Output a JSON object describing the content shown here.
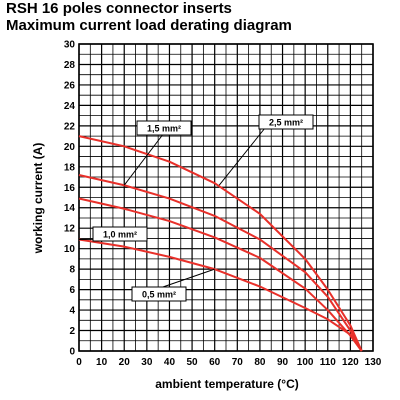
{
  "title": "RSH 16 poles connector inserts",
  "subtitle": "Maximum current load derating diagram",
  "chart_data": {
    "type": "line",
    "xlabel": "ambient temperature (°C)",
    "ylabel": "working current (A)",
    "xlim": [
      0,
      130
    ],
    "ylim": [
      0,
      30
    ],
    "x_ticks": [
      "0",
      "10",
      "20",
      "30",
      "40",
      "50",
      "60",
      "70",
      "80",
      "90",
      "100",
      "110",
      "120",
      "130"
    ],
    "y_ticks": [
      "0",
      "2",
      "4",
      "6",
      "8",
      "10",
      "12",
      "14",
      "16",
      "18",
      "20",
      "22",
      "24",
      "26",
      "28",
      "30"
    ],
    "grid": true,
    "line_color": "#e8302a",
    "series": [
      {
        "name": "2,5 mm²",
        "x": [
          0,
          20,
          40,
          60,
          80,
          100,
          110,
          120,
          125
        ],
        "y": [
          21,
          20,
          18.5,
          16.4,
          13.4,
          9,
          6,
          2.5,
          0
        ]
      },
      {
        "name": "1,5 mm²",
        "x": [
          0,
          20,
          40,
          60,
          80,
          100,
          110,
          120,
          125
        ],
        "y": [
          17.2,
          16.2,
          14.9,
          13.2,
          10.9,
          7.7,
          5.3,
          2,
          0
        ]
      },
      {
        "name": "",
        "x": [
          0,
          20,
          40,
          60,
          80,
          100,
          110,
          120,
          125
        ],
        "y": [
          14.9,
          13.9,
          12.7,
          11.1,
          9.1,
          6.1,
          4,
          1.5,
          0
        ]
      },
      {
        "name": "1,0 mm²",
        "x": [
          0,
          20,
          40,
          60,
          80,
          100,
          110,
          120,
          125
        ],
        "y": [
          10.9,
          10.2,
          9.2,
          8,
          6.3,
          4.2,
          3.1,
          1.6,
          0
        ]
      },
      {
        "name": "0,5 mm²",
        "x": [],
        "y": []
      }
    ],
    "annotations": [
      {
        "text": "1,5 mm²",
        "target": {
          "x": 20,
          "y": 16.2
        }
      },
      {
        "text": "2,5 mm²",
        "target": {
          "x": 62,
          "y": 16.2
        }
      },
      {
        "text": "1,0 mm²",
        "target": {
          "x": 0,
          "y": 10.9
        }
      },
      {
        "text": "0,5 mm²",
        "target": {
          "x": 60,
          "y": 8
        }
      }
    ]
  }
}
